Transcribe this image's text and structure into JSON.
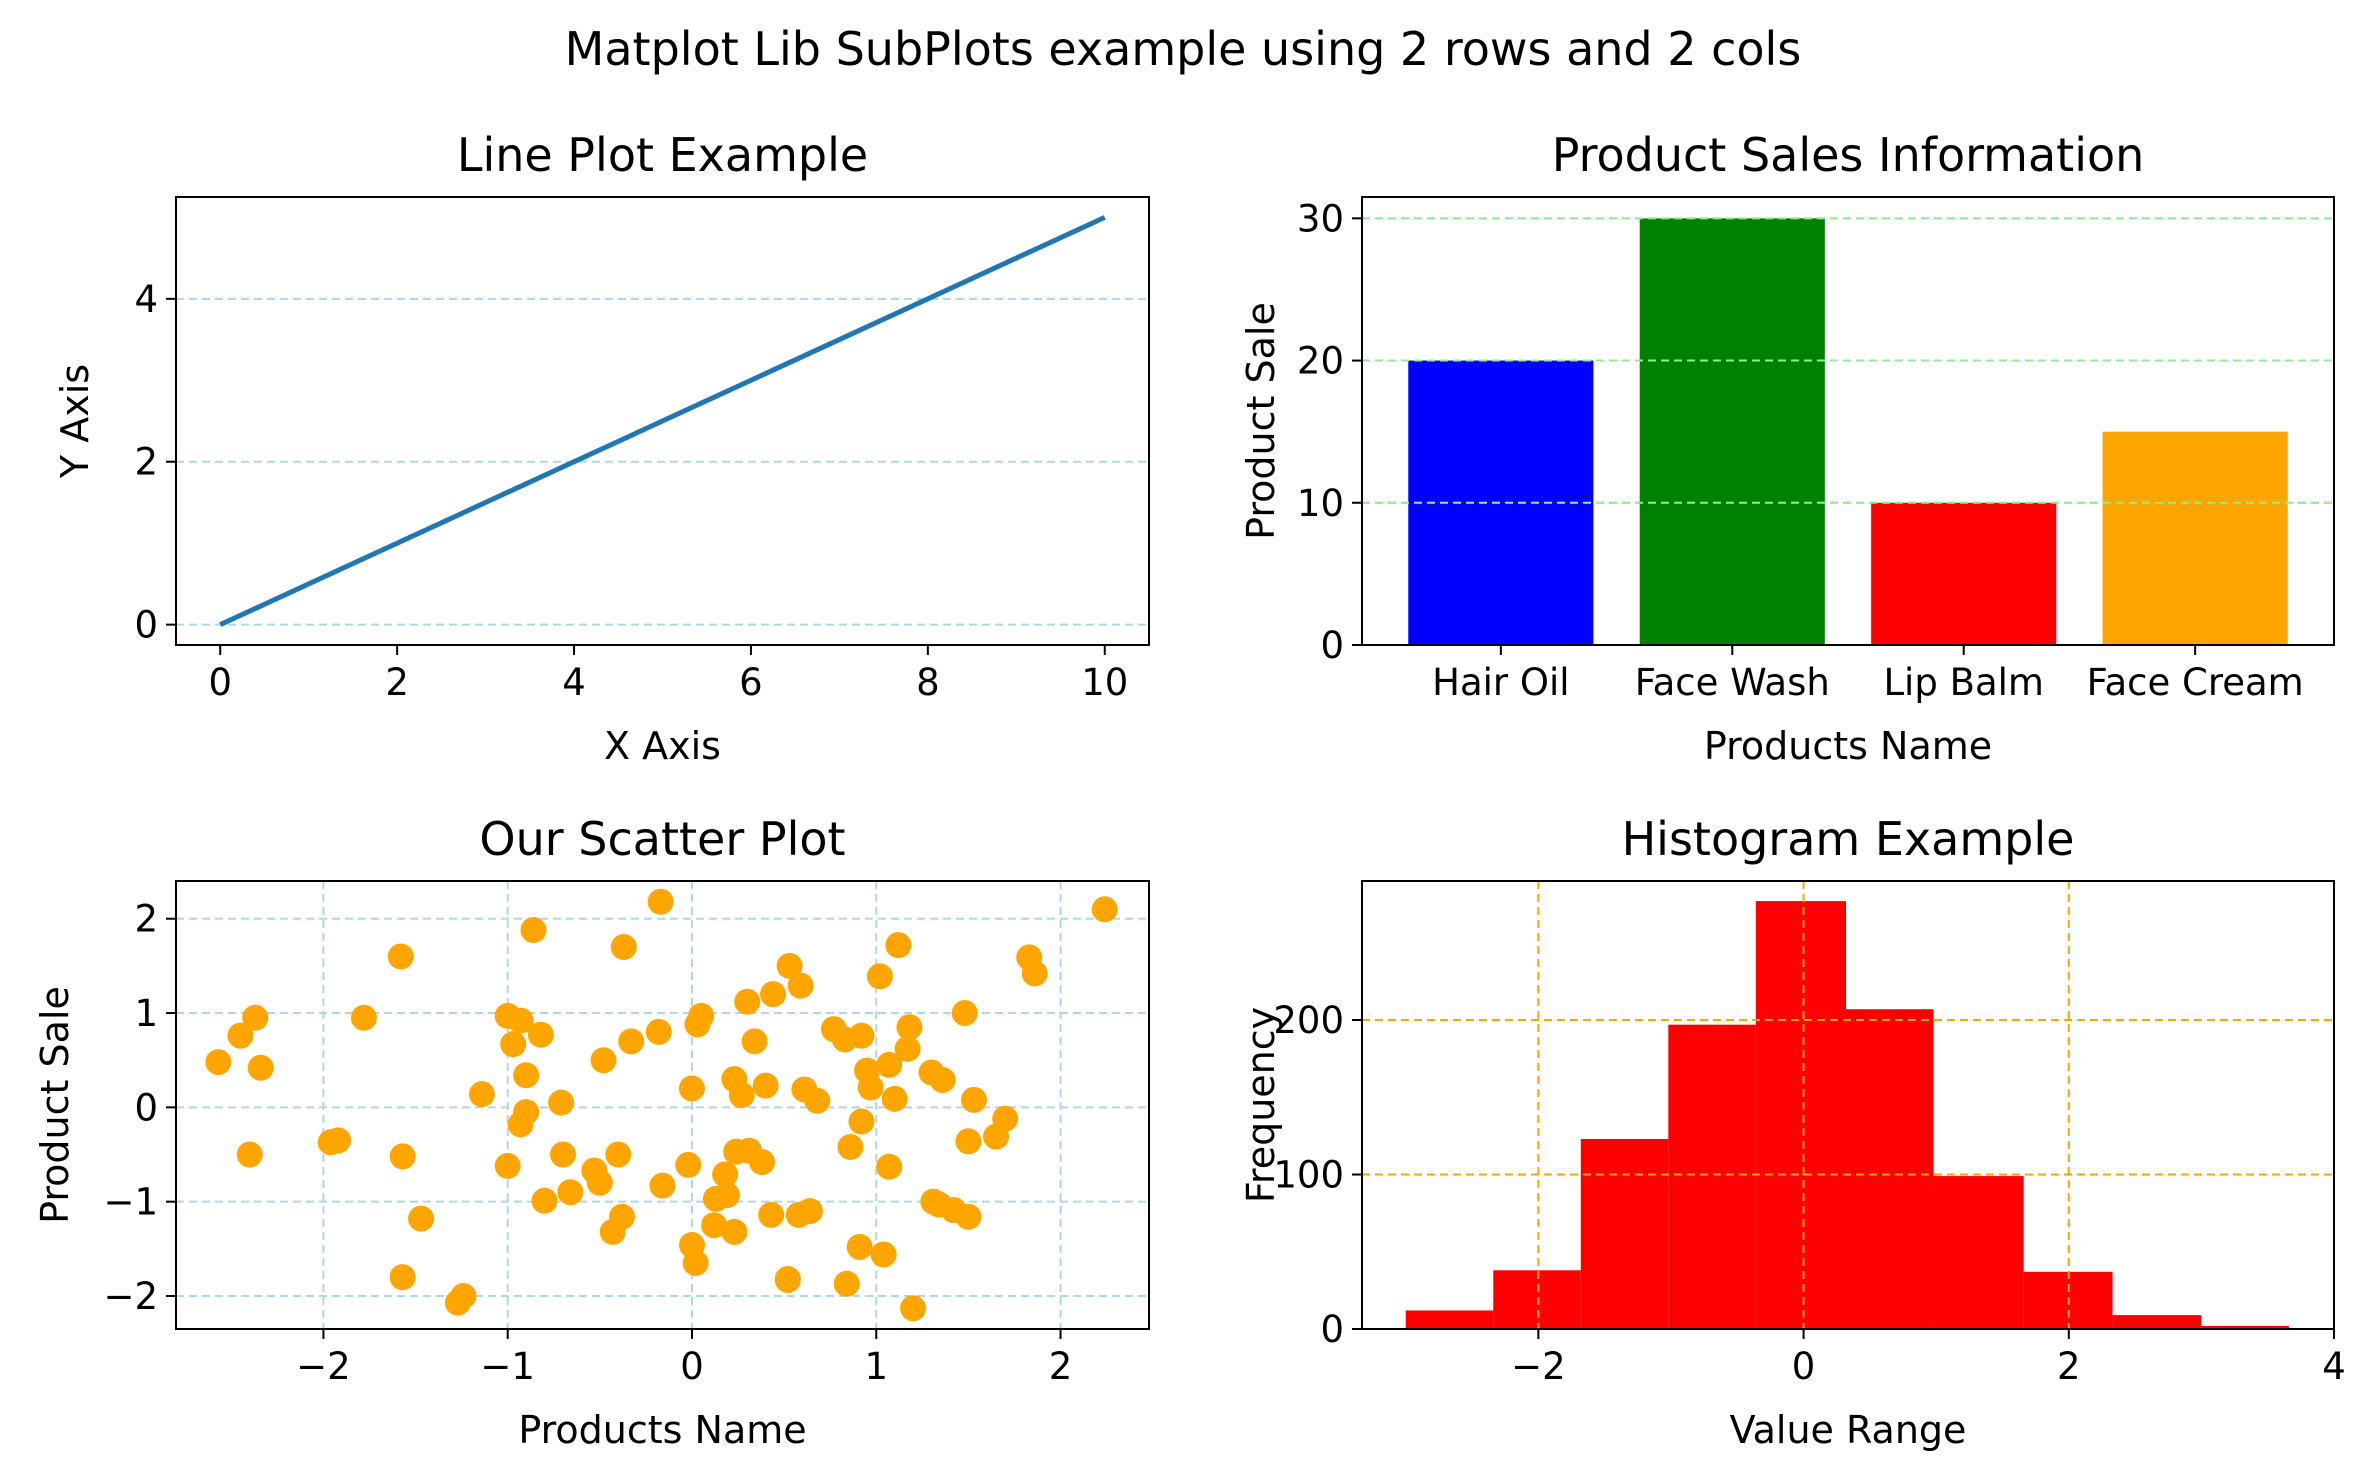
{
  "figure": {
    "suptitle": "Matplot Lib SubPlots example using 2 rows and 2 cols"
  },
  "chart_data": [
    {
      "type": "line",
      "title": "Line Plot Example",
      "xlabel": "X Axis",
      "ylabel": "Y Axis",
      "x": [
        0,
        10
      ],
      "y": [
        0,
        5
      ],
      "xlim": [
        -0.5,
        10.5
      ],
      "ylim": [
        -0.25,
        5.25
      ],
      "xticks": [
        0,
        2,
        4,
        6,
        8,
        10
      ],
      "yticks": [
        0,
        2,
        4
      ],
      "line_color": "#1f77b4",
      "grid": "y-axis dashed",
      "grid_color": "#add8e6"
    },
    {
      "type": "bar",
      "title": "Product Sales Information",
      "xlabel": "Products Name",
      "ylabel": "Product Sale",
      "categories": [
        "Hair Oil",
        "Face Wash",
        "Lip Balm",
        "Face Cream"
      ],
      "values": [
        20,
        30,
        10,
        15
      ],
      "colors": [
        "#0000ff",
        "#008000",
        "#ff0000",
        "#ffa500"
      ],
      "ylim": [
        0,
        31.5
      ],
      "yticks": [
        0,
        10,
        20,
        30
      ],
      "grid": "y-axis dashed",
      "grid_color": "#90ee90"
    },
    {
      "type": "scatter",
      "title": "Our Scatter Plot",
      "xlabel": "Products Name",
      "ylabel": "Product Sale",
      "marker_color": "#ffa500",
      "xlim": [
        -2.8,
        2.48
      ],
      "ylim": [
        -2.35,
        2.4
      ],
      "xticks": [
        -2,
        -1,
        0,
        1,
        2
      ],
      "yticks": [
        -2,
        -1,
        0,
        1,
        2
      ],
      "tick_labels_x": [
        "−2",
        "−1",
        "0",
        "1",
        "2"
      ],
      "tick_labels_y": [
        "−2",
        "−1",
        "0",
        "1",
        "2"
      ],
      "grid": "both dashed",
      "grid_color": "#add8e6",
      "points": [
        [
          -2.57,
          0.48
        ],
        [
          -2.45,
          0.76
        ],
        [
          -2.37,
          0.95
        ],
        [
          -2.34,
          0.42
        ],
        [
          -2.4,
          -0.5
        ],
        [
          -1.96,
          -0.37
        ],
        [
          -1.92,
          -0.35
        ],
        [
          -1.78,
          0.95
        ],
        [
          -1.58,
          1.6
        ],
        [
          -1.57,
          -0.52
        ],
        [
          -1.57,
          -1.8
        ],
        [
          -1.47,
          -1.18
        ],
        [
          -1.27,
          -2.07
        ],
        [
          -1.24,
          -2.0
        ],
        [
          -1.14,
          0.14
        ],
        [
          -1.0,
          0.97
        ],
        [
          -1.0,
          -0.62
        ],
        [
          -0.97,
          0.67
        ],
        [
          -0.93,
          0.92
        ],
        [
          -0.93,
          -0.18
        ],
        [
          -0.9,
          -0.05
        ],
        [
          -0.9,
          0.34
        ],
        [
          -0.86,
          1.88
        ],
        [
          -0.82,
          0.77
        ],
        [
          -0.8,
          -0.99
        ],
        [
          -0.71,
          0.05
        ],
        [
          -0.7,
          -0.5
        ],
        [
          -0.66,
          -0.9
        ],
        [
          -0.53,
          -0.67
        ],
        [
          -0.5,
          -0.8
        ],
        [
          -0.48,
          0.5
        ],
        [
          -0.43,
          -1.32
        ],
        [
          -0.4,
          -0.5
        ],
        [
          -0.38,
          -1.16
        ],
        [
          -0.37,
          1.7
        ],
        [
          -0.33,
          0.7
        ],
        [
          -0.18,
          0.8
        ],
        [
          -0.16,
          -0.83
        ],
        [
          -0.17,
          2.18
        ],
        [
          -0.02,
          -0.61
        ],
        [
          0.0,
          0.2
        ],
        [
          0.0,
          -1.46
        ],
        [
          0.02,
          -1.65
        ],
        [
          0.03,
          0.88
        ],
        [
          0.05,
          0.97
        ],
        [
          0.12,
          -1.25
        ],
        [
          0.13,
          -0.97
        ],
        [
          0.18,
          -0.71
        ],
        [
          0.19,
          -0.93
        ],
        [
          0.23,
          0.3
        ],
        [
          0.23,
          -1.32
        ],
        [
          0.24,
          -0.47
        ],
        [
          0.27,
          0.13
        ],
        [
          0.3,
          1.12
        ],
        [
          0.31,
          -0.46
        ],
        [
          0.34,
          0.7
        ],
        [
          0.38,
          -0.58
        ],
        [
          0.4,
          0.23
        ],
        [
          0.43,
          -1.14
        ],
        [
          0.44,
          1.2
        ],
        [
          0.52,
          -1.83
        ],
        [
          0.53,
          1.5
        ],
        [
          0.58,
          -1.14
        ],
        [
          0.59,
          1.29
        ],
        [
          0.61,
          0.19
        ],
        [
          0.64,
          -1.1
        ],
        [
          0.68,
          0.07
        ],
        [
          0.77,
          0.83
        ],
        [
          0.83,
          0.72
        ],
        [
          0.84,
          -1.87
        ],
        [
          0.86,
          -0.42
        ],
        [
          0.92,
          0.76
        ],
        [
          0.92,
          -0.15
        ],
        [
          0.91,
          -1.48
        ],
        [
          0.95,
          0.39
        ],
        [
          0.97,
          0.21
        ],
        [
          1.02,
          1.39
        ],
        [
          1.04,
          -1.56
        ],
        [
          1.07,
          0.45
        ],
        [
          1.07,
          -0.63
        ],
        [
          1.1,
          0.09
        ],
        [
          1.12,
          1.72
        ],
        [
          1.17,
          0.62
        ],
        [
          1.18,
          0.85
        ],
        [
          1.2,
          -2.13
        ],
        [
          1.3,
          0.37
        ],
        [
          1.31,
          -1.0
        ],
        [
          1.34,
          -1.03
        ],
        [
          1.36,
          0.29
        ],
        [
          1.42,
          -1.09
        ],
        [
          1.48,
          1.0
        ],
        [
          1.5,
          -1.16
        ],
        [
          1.5,
          -0.36
        ],
        [
          1.53,
          0.08
        ],
        [
          1.65,
          -0.31
        ],
        [
          1.7,
          -0.12
        ],
        [
          1.83,
          1.59
        ],
        [
          1.86,
          1.42
        ],
        [
          2.24,
          2.1
        ],
        [
          0.52,
          -1.82
        ]
      ]
    },
    {
      "type": "bar",
      "subtype": "histogram",
      "title": "Histogram Example",
      "xlabel": "Value Range",
      "ylabel": "Frequency",
      "bar_color": "#ff0000",
      "bin_edges": [
        -3.0,
        -2.34,
        -1.68,
        -1.02,
        -0.36,
        0.32,
        0.98,
        1.66,
        2.33,
        3.0,
        3.66
      ],
      "values": [
        12,
        38,
        123,
        197,
        277,
        207,
        99,
        37,
        9,
        2
      ],
      "xlim": [
        -3.33,
        4.0
      ],
      "ylim": [
        0,
        290
      ],
      "xticks": [
        -2,
        0,
        2,
        4
      ],
      "tick_labels_x": [
        "−2",
        "0",
        "2",
        "4"
      ],
      "yticks": [
        0,
        100,
        200
      ],
      "grid": "both dashed",
      "grid_color": "#ffa500"
    }
  ]
}
